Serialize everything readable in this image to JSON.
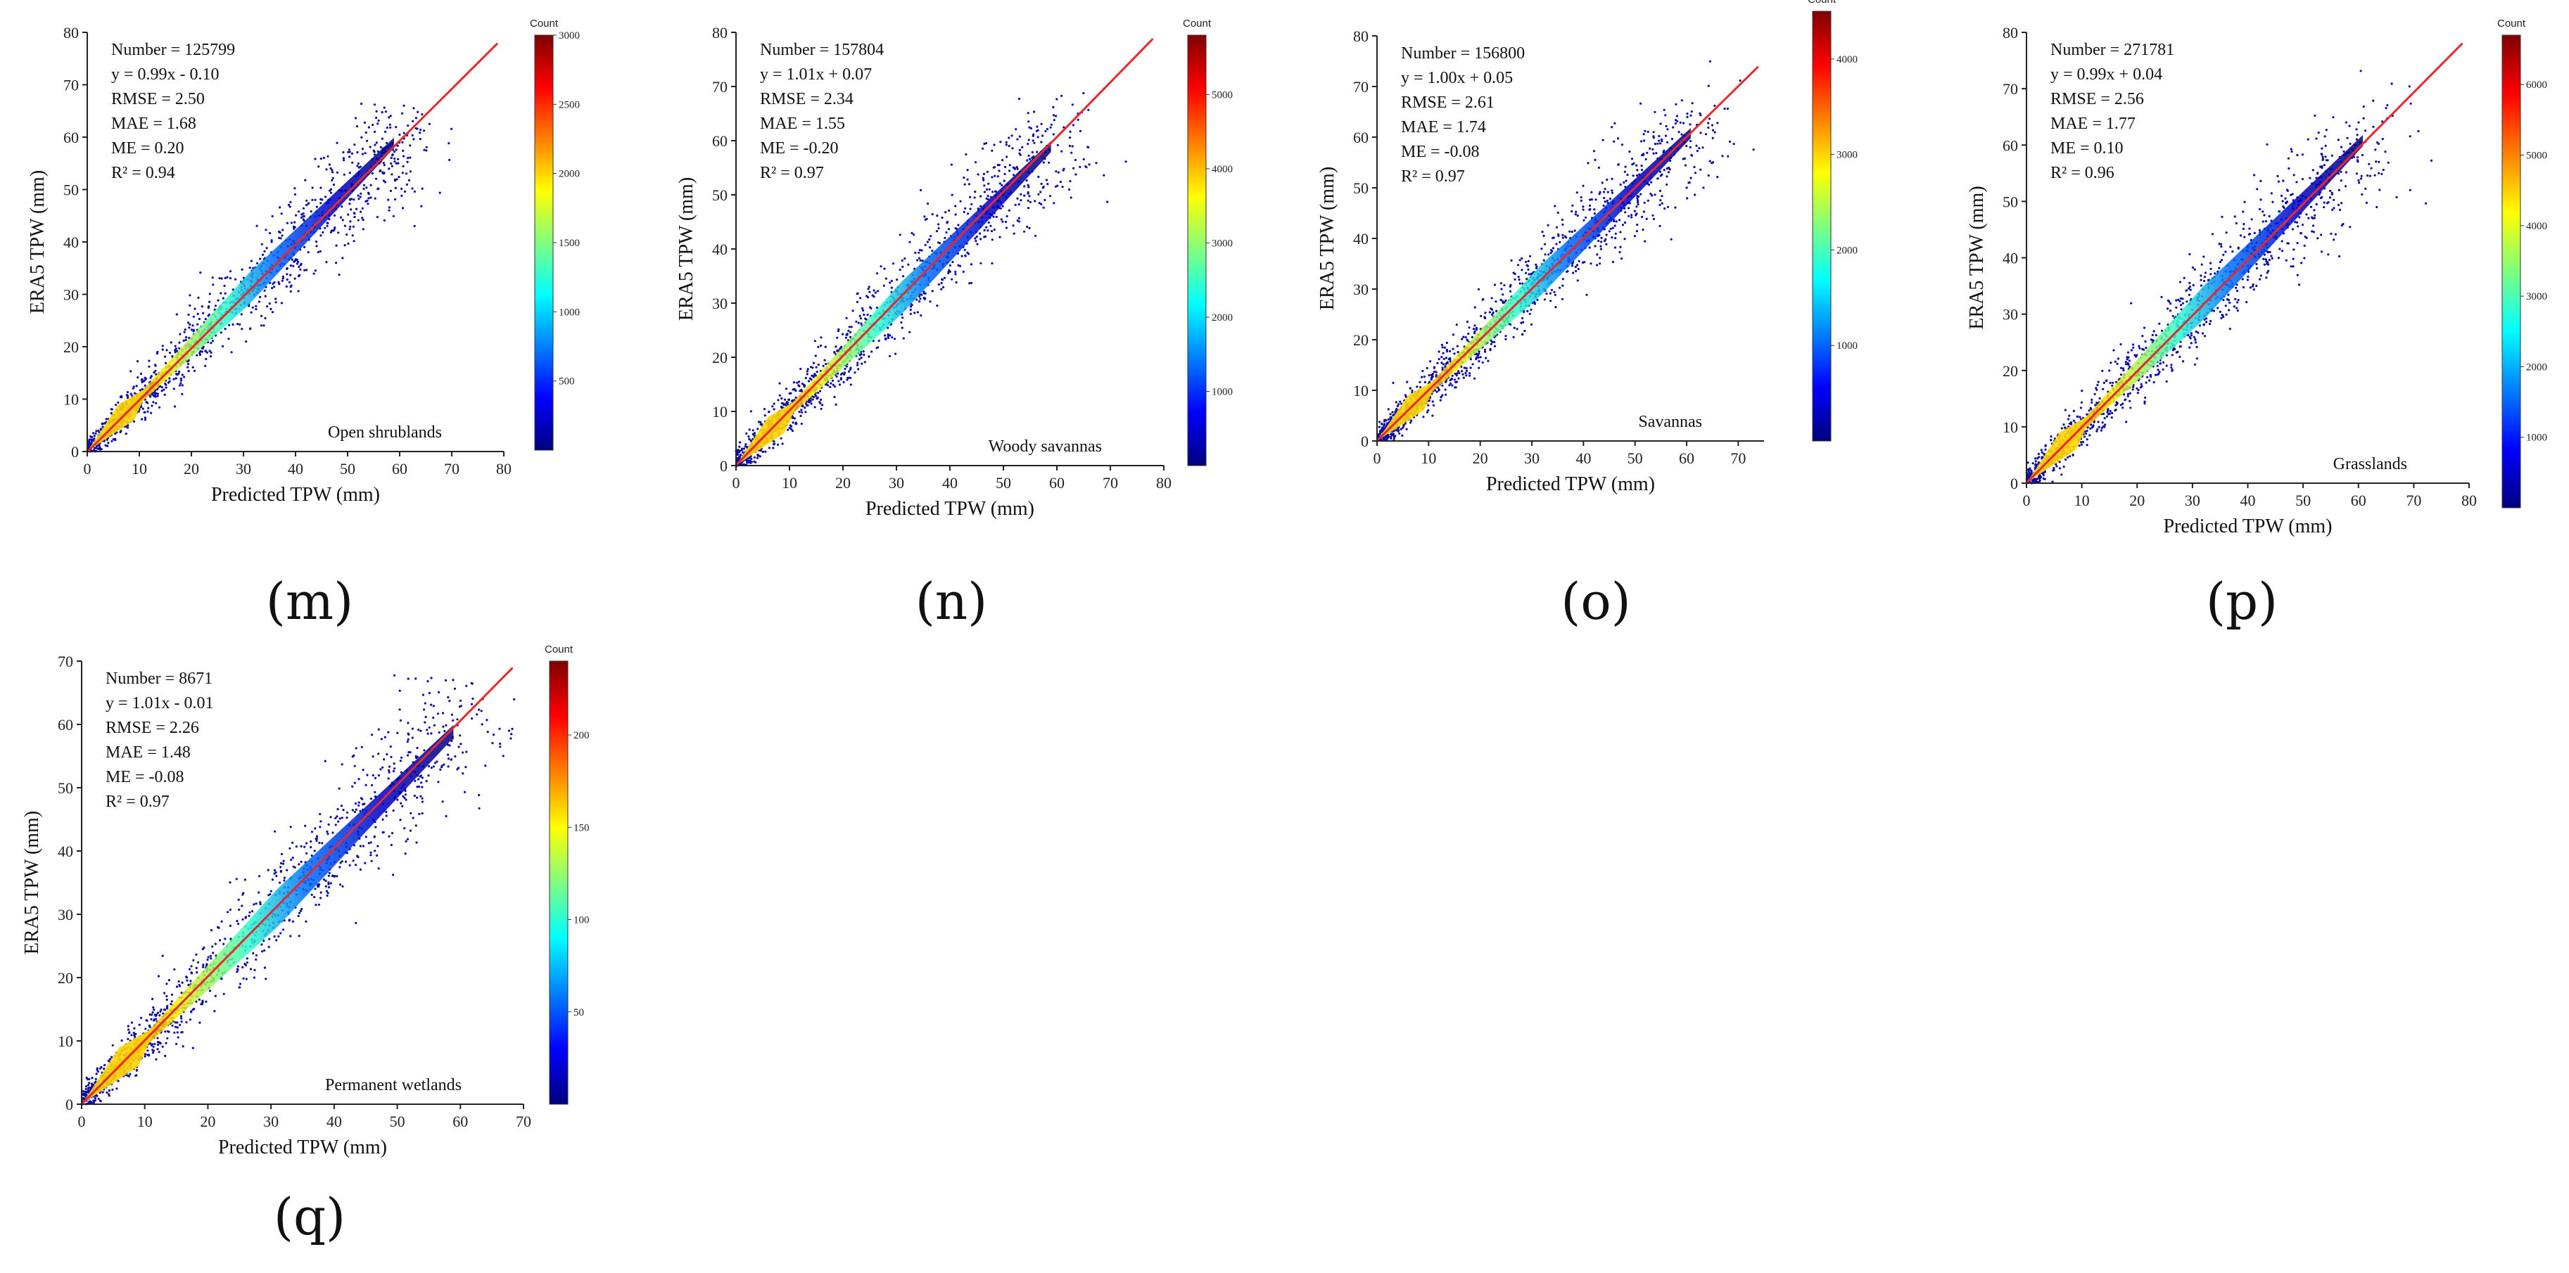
{
  "chart_data": [
    {
      "type": "scatter",
      "panel_label": "(m)",
      "landcover": "Open shrublands",
      "xlabel": "Predicted TPW (mm)",
      "ylabel": "ERA5 TPW (mm)",
      "xlim": [
        0,
        80
      ],
      "ylim": [
        0,
        80
      ],
      "xticks": [
        0,
        10,
        20,
        30,
        40,
        50,
        60,
        70,
        80
      ],
      "yticks": [
        0,
        10,
        20,
        30,
        40,
        50,
        60,
        70,
        80
      ],
      "fit_line": {
        "slope": 0.99,
        "intercept": -0.1
      },
      "stats": [
        "Number = 125799",
        "y = 0.99x - 0.10",
        "RMSE = 2.50",
        "MAE = 1.68",
        "ME = 0.20",
        "R² = 0.94"
      ],
      "colorbar": {
        "title": "Count",
        "max": 3000,
        "ticks": [
          500,
          1000,
          1500,
          2000,
          2500,
          3000
        ]
      },
      "data_extent": 62
    },
    {
      "type": "scatter",
      "panel_label": "(n)",
      "landcover": "Woody savannas",
      "xlabel": "Predicted TPW (mm)",
      "ylabel": "ERA5 TPW (mm)",
      "xlim": [
        0,
        80
      ],
      "ylim": [
        0,
        80
      ],
      "xticks": [
        0,
        10,
        20,
        30,
        40,
        50,
        60,
        70,
        80
      ],
      "yticks": [
        0,
        10,
        20,
        30,
        40,
        50,
        60,
        70,
        80
      ],
      "fit_line": {
        "slope": 1.01,
        "intercept": 0.07
      },
      "stats": [
        "Number = 157804",
        "y = 1.01x + 0.07",
        "RMSE = 2.34",
        "MAE = 1.55",
        "ME = -0.20",
        "R² = 0.97"
      ],
      "colorbar": {
        "title": "Count",
        "max": 5800,
        "ticks": [
          1000,
          2000,
          3000,
          4000,
          5000
        ]
      },
      "data_extent": 62
    },
    {
      "type": "scatter",
      "panel_label": "(o)",
      "landcover": "Savannas",
      "xlabel": "Predicted TPW (mm)",
      "ylabel": "ERA5 TPW (mm)",
      "xlim": [
        0,
        75
      ],
      "ylim": [
        0,
        80
      ],
      "xticks": [
        0,
        10,
        20,
        30,
        40,
        50,
        60,
        70
      ],
      "yticks": [
        0,
        10,
        20,
        30,
        40,
        50,
        60,
        70,
        80
      ],
      "fit_line": {
        "slope": 1.0,
        "intercept": 0.05
      },
      "stats": [
        "Number = 156800",
        "y = 1.00x + 0.05",
        "RMSE = 2.61",
        "MAE = 1.74",
        "ME = -0.08",
        "R² = 0.97"
      ],
      "colorbar": {
        "title": "Count",
        "max": 4500,
        "ticks": [
          1000,
          2000,
          3000,
          4000
        ]
      },
      "data_extent": 64
    },
    {
      "type": "scatter",
      "panel_label": "(p)",
      "landcover": "Grasslands",
      "xlabel": "Predicted TPW (mm)",
      "ylabel": "ERA5 TPW (mm)",
      "xlim": [
        0,
        80
      ],
      "ylim": [
        0,
        80
      ],
      "xticks": [
        0,
        10,
        20,
        30,
        40,
        50,
        60,
        70,
        80
      ],
      "yticks": [
        0,
        10,
        20,
        30,
        40,
        50,
        60,
        70,
        80
      ],
      "fit_line": {
        "slope": 0.99,
        "intercept": 0.04
      },
      "stats": [
        "Number = 271781",
        "y = 0.99x + 0.04",
        "RMSE = 2.56",
        "MAE = 1.77",
        "ME = 0.10",
        "R² = 0.96"
      ],
      "colorbar": {
        "title": "Count",
        "max": 6700,
        "ticks": [
          1000,
          2000,
          3000,
          4000,
          5000,
          6000
        ]
      },
      "data_extent": 64
    },
    {
      "type": "scatter",
      "panel_label": "(q)",
      "landcover": "Permanent wetlands",
      "xlabel": "Predicted TPW (mm)",
      "ylabel": "ERA5 TPW (mm)",
      "xlim": [
        0,
        70
      ],
      "ylim": [
        0,
        70
      ],
      "xticks": [
        0,
        10,
        20,
        30,
        40,
        50,
        60,
        70
      ],
      "yticks": [
        0,
        10,
        20,
        30,
        40,
        50,
        60,
        70
      ],
      "fit_line": {
        "slope": 1.01,
        "intercept": -0.01
      },
      "stats": [
        "Number = 8671",
        "y = 1.01x - 0.01",
        "RMSE = 2.26",
        "MAE = 1.48",
        "ME = -0.08",
        "R² = 0.97"
      ],
      "colorbar": {
        "title": "Count",
        "max": 240,
        "ticks": [
          50,
          100,
          150,
          200
        ]
      },
      "data_extent": 62
    }
  ]
}
